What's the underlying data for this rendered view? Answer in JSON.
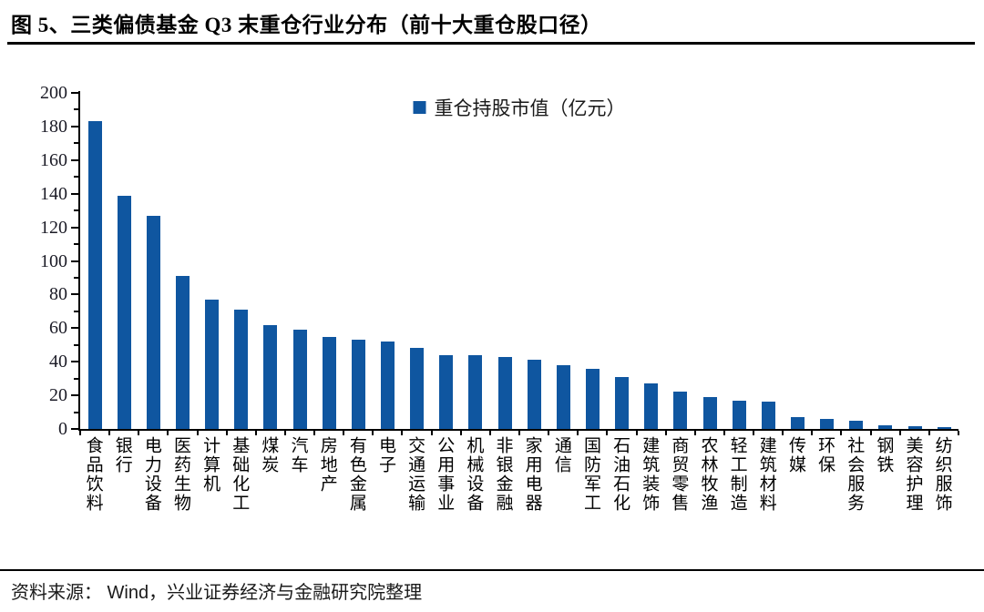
{
  "header": {
    "title": "图 5、三类偏债基金 Q3 末重仓行业分布（前十大重仓股口径）"
  },
  "footer": {
    "text": "资料来源： Wind，兴业证券经济与金融研究院整理"
  },
  "colors": {
    "bar": "#0F56A0",
    "axis": "#000000"
  },
  "chart_data": {
    "type": "bar",
    "title": "图 5、三类偏债基金 Q3 末重仓行业分布（前十大重仓股口径）",
    "legend": "重仓持股市值（亿元）",
    "legend_position": "top-center",
    "grid": false,
    "categories": [
      "食品饮料",
      "银行",
      "电力设备",
      "医药生物",
      "计算机",
      "基础化工",
      "煤炭",
      "汽车",
      "房地产",
      "有色金属",
      "电子",
      "交通运输",
      "公用事业",
      "机械设备",
      "非银金融",
      "家用电器",
      "通信",
      "国防军工",
      "石油石化",
      "建筑装饰",
      "商贸零售",
      "农林牧渔",
      "轻工制造",
      "建筑材料",
      "传媒",
      "环保",
      "社会服务",
      "钢铁",
      "美容护理",
      "纺织服饰"
    ],
    "values": [
      183,
      139,
      127,
      91,
      77,
      71,
      62,
      59,
      55,
      53,
      52,
      48,
      44,
      44,
      43,
      41,
      38,
      36,
      31,
      27,
      22,
      19,
      17,
      16,
      7,
      6,
      5,
      2,
      1.5,
      1
    ],
    "ylabel": "",
    "xlabel": "",
    "ylim": [
      0,
      200
    ],
    "ytick_major_step": 20,
    "ytick_minor_step": 10,
    "bar_color": "#0F56A0"
  }
}
